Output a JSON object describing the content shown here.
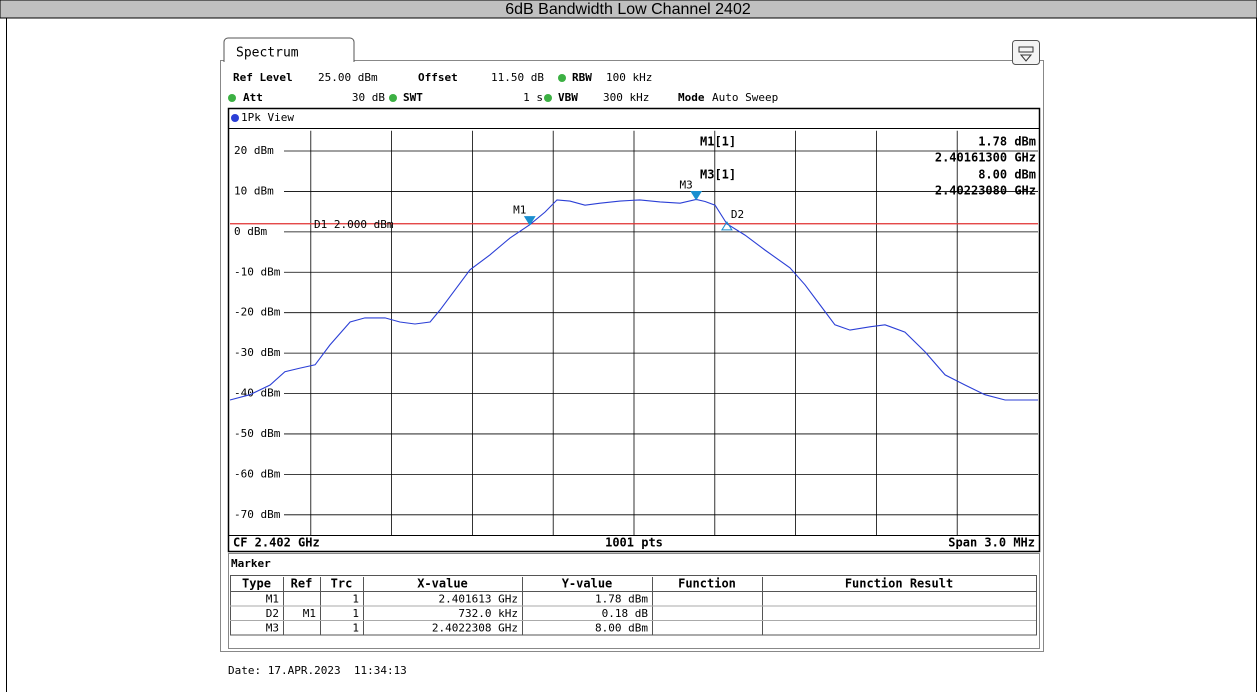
{
  "title": "6dB Bandwidth Low Channel 2402",
  "tab": "Spectrum",
  "settings": [
    {
      "label": "Ref Level",
      "value": "25.00 dBm"
    },
    {
      "label": "Offset",
      "value": "11.50 dB"
    },
    {
      "label": "RBW",
      "value": "100 kHz"
    },
    {
      "label": "Att",
      "value": "30 dB"
    },
    {
      "label": "SWT",
      "value": "1 s"
    },
    {
      "label": "VBW",
      "value": "300 kHz"
    },
    {
      "label": "Mode",
      "value": "Auto Sweep"
    }
  ],
  "chart_data": {
    "type": "line",
    "view_label": "1Pk View",
    "xlim": [
      2.4005,
      2.4035
    ],
    "ylim": [
      -75,
      25
    ],
    "yticks": [
      {
        "value": 20,
        "label": "20 dBm"
      },
      {
        "value": 10,
        "label": "10 dBm"
      },
      {
        "value": 0,
        "label": "0 dBm"
      },
      {
        "value": -10,
        "label": "-10 dBm"
      },
      {
        "value": -20,
        "label": "-20 dBm"
      },
      {
        "value": -30,
        "label": "-30 dBm"
      },
      {
        "value": -40,
        "label": "-40 dBm"
      },
      {
        "value": -50,
        "label": "-50 dBm"
      },
      {
        "value": -60,
        "label": "-60 dBm"
      },
      {
        "value": -70,
        "label": "-70 dBm"
      }
    ],
    "grid": true,
    "x": [
      2.4005,
      2.400574,
      2.400649,
      2.400704,
      2.40076,
      2.400816,
      2.400871,
      2.400946,
      2.401001,
      2.401076,
      2.401131,
      2.401187,
      2.401243,
      2.40128,
      2.401335,
      2.401391,
      2.401465,
      2.40154,
      2.401613,
      2.40167,
      2.401714,
      2.401762,
      2.401818,
      2.401874,
      2.401948,
      2.402022,
      2.402097,
      2.402171,
      2.402231,
      2.402264,
      2.402301,
      2.402345,
      2.402412,
      2.402486,
      2.402579,
      2.402635,
      2.402691,
      2.402746,
      2.402802,
      2.402876,
      2.402932,
      2.403006,
      2.403081,
      2.403155,
      2.403229,
      2.403303,
      2.403378,
      2.4035
    ],
    "series": [
      {
        "color": "#2b3fd6",
        "values": [
          -41.6,
          -40.3,
          -37.9,
          -34.6,
          -33.7,
          -32.9,
          -28.0,
          -22.3,
          -21.3,
          -21.3,
          -22.3,
          -22.8,
          -22.3,
          -19.3,
          -14.4,
          -9.4,
          -5.7,
          -1.5,
          1.78,
          4.9,
          7.9,
          7.6,
          6.6,
          7.1,
          7.6,
          7.9,
          7.4,
          7.1,
          8.0,
          7.5,
          6.6,
          1.96,
          -0.8,
          -4.5,
          -8.9,
          -13.1,
          -18.1,
          -23.0,
          -24.3,
          -23.5,
          -23.0,
          -24.8,
          -29.7,
          -35.4,
          -37.9,
          -40.3,
          -41.6,
          -41.6
        ]
      }
    ],
    "display_line": {
      "label": "D1 2.000 dBm",
      "value": 2,
      "color": "#e03030"
    },
    "markers": [
      {
        "label": "M1",
        "x": 2.401613,
        "y": 1.78,
        "filled": true
      },
      {
        "label": "D2",
        "x": 2.402345,
        "y": 1.96,
        "filled": false
      },
      {
        "label": "M3",
        "x": 2.4022308,
        "y": 8.0,
        "filled": true
      }
    ],
    "marker_color": "#1a8fd0",
    "readout": [
      {
        "name": "M1[1]",
        "level": "1.78 dBm",
        "freq": "2.40161300 GHz"
      },
      {
        "name": "M3[1]",
        "level": "8.00 dBm",
        "freq": "2.40223080 GHz"
      }
    ],
    "footer": [
      "CF 2.402 GHz",
      "1001 pts",
      "Span 3.0 MHz"
    ]
  },
  "marker_table": {
    "title": "Marker",
    "columns": [
      "Type",
      "Ref",
      "Trc",
      "X-value",
      "Y-value",
      "Function",
      "Function Result"
    ],
    "rows": [
      [
        "M1",
        null,
        "1",
        "2.401613 GHz",
        "1.78 dBm",
        null,
        null
      ],
      [
        "D2",
        "M1",
        "1",
        "732.0 kHz",
        "0.18 dB",
        null,
        null
      ],
      [
        "M3",
        null,
        "1",
        "2.4022308 GHz",
        "8.00 dBm",
        null,
        null
      ]
    ]
  },
  "date": "Date: 17.APR.2023  11:34:13"
}
